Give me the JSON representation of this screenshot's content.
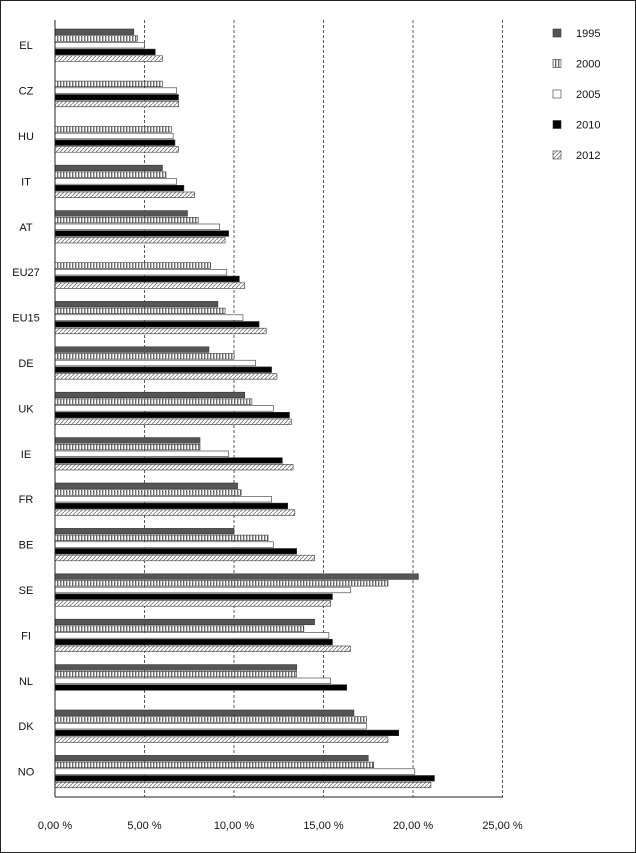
{
  "chart_data": {
    "type": "bar",
    "orientation": "horizontal",
    "categories": [
      "EL",
      "CZ",
      "HU",
      "IT",
      "AT",
      "EU27",
      "EU15",
      "DE",
      "UK",
      "IE",
      "FR",
      "BE",
      "SE",
      "FI",
      "NL",
      "DK",
      "NO"
    ],
    "series": [
      {
        "name": "1995",
        "pattern": "solid",
        "color": "#555555",
        "values": [
          4.4,
          null,
          null,
          6.0,
          7.4,
          null,
          9.1,
          8.6,
          10.6,
          8.1,
          10.2,
          10.0,
          20.3,
          14.5,
          13.5,
          16.7,
          17.5
        ]
      },
      {
        "name": "2000",
        "pattern": "vertical-stripes",
        "color": "#777777",
        "values": [
          4.6,
          6.0,
          6.5,
          6.2,
          8.0,
          8.7,
          9.5,
          10.0,
          11.0,
          8.1,
          10.4,
          11.9,
          18.6,
          13.9,
          13.5,
          17.4,
          17.8
        ]
      },
      {
        "name": "2005",
        "pattern": "empty",
        "color": "#ffffff",
        "values": [
          5.0,
          6.8,
          6.6,
          6.8,
          9.2,
          9.6,
          10.5,
          11.2,
          12.2,
          9.7,
          12.1,
          12.2,
          16.5,
          15.3,
          15.4,
          17.4,
          20.1
        ]
      },
      {
        "name": "2010",
        "pattern": "solid",
        "color": "#000000",
        "values": [
          5.6,
          6.9,
          6.7,
          7.2,
          9.7,
          10.3,
          11.4,
          12.1,
          13.1,
          12.7,
          13.0,
          13.5,
          15.5,
          15.5,
          16.3,
          19.2,
          21.2
        ]
      },
      {
        "name": "2012",
        "pattern": "diagonal-hatch",
        "color": "#ffffff",
        "values": [
          6.0,
          6.9,
          6.9,
          7.8,
          9.5,
          10.6,
          11.8,
          12.4,
          13.2,
          13.3,
          13.4,
          14.5,
          15.4,
          16.5,
          null,
          18.6,
          21.0
        ]
      }
    ],
    "x_ticks": [
      "0,00 %",
      "5,00 %",
      "10,00 %",
      "15,00 %",
      "20,00 %",
      "25,00 %"
    ],
    "xlim": [
      0,
      25
    ],
    "grid": "vertical dashed",
    "legend_position": "right"
  }
}
